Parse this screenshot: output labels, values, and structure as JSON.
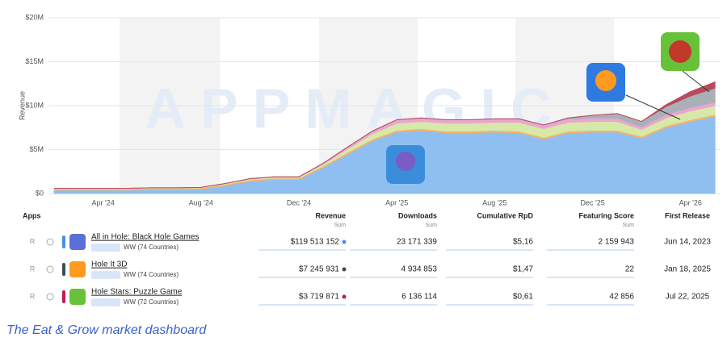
{
  "chart_data": {
    "type": "stacked-area",
    "y_label": "Revenue",
    "watermark": "APPMAGIC",
    "categories": [
      null,
      null,
      "Apr '24",
      null,
      null,
      null,
      "Aug '24",
      null,
      null,
      null,
      "Dec '24",
      null,
      null,
      null,
      "Apr '25",
      null,
      null,
      null,
      "Aug '25",
      null,
      null,
      null,
      "Dec '25",
      null,
      null,
      null,
      "Apr '26",
      null
    ],
    "series": [
      {
        "color": "#8fbff0",
        "values": [
          400000,
          400000,
          400000,
          400000,
          450000,
          450000,
          500000,
          900000,
          1400000,
          1600000,
          1600000,
          3000000,
          4500000,
          6000000,
          7000000,
          7200000,
          6900000,
          6900000,
          7000000,
          6900000,
          6200000,
          6900000,
          7000000,
          7000000,
          6300000,
          7500000,
          8200000,
          8800000
        ]
      },
      {
        "color": "#f6b26b",
        "values": [
          150000,
          150000,
          150000,
          150000,
          150000,
          150000,
          150000,
          150000,
          150000,
          150000,
          150000,
          150000,
          200000,
          200000,
          200000,
          200000,
          200000,
          200000,
          200000,
          200000,
          200000,
          200000,
          200000,
          200000,
          200000,
          200000,
          200000,
          200000
        ]
      },
      {
        "color": "#d6e9a8",
        "values": [
          50000,
          50000,
          50000,
          50000,
          50000,
          50000,
          50000,
          100000,
          100000,
          100000,
          100000,
          200000,
          400000,
          600000,
          800000,
          800000,
          900000,
          900000,
          900000,
          1000000,
          1000000,
          1000000,
          1000000,
          1000000,
          800000,
          900000,
          1000000,
          1000000
        ]
      },
      {
        "color": "#e9a6cf",
        "values": [
          0,
          0,
          0,
          0,
          0,
          0,
          0,
          0,
          50000,
          50000,
          50000,
          100000,
          200000,
          300000,
          400000,
          400000,
          400000,
          400000,
          400000,
          400000,
          400000,
          400000,
          400000,
          400000,
          300000,
          400000,
          400000,
          400000
        ]
      },
      {
        "color": "#a9b0b8",
        "values": [
          0,
          0,
          0,
          0,
          0,
          0,
          0,
          0,
          0,
          0,
          0,
          0,
          0,
          0,
          0,
          0,
          0,
          0,
          0,
          0,
          0,
          100000,
          300000,
          500000,
          600000,
          900000,
          1300000,
          1600000
        ]
      },
      {
        "color": "#b94a5e",
        "values": [
          0,
          0,
          0,
          0,
          0,
          0,
          0,
          0,
          0,
          0,
          0,
          0,
          0,
          0,
          0,
          0,
          0,
          0,
          0,
          0,
          0,
          0,
          0,
          0,
          0,
          200000,
          500000,
          700000
        ]
      }
    ],
    "ylim": [
      0,
      20000000
    ],
    "yticks": [
      {
        "value": 0,
        "label": "$0"
      },
      {
        "value": 5000000,
        "label": "$5M"
      },
      {
        "value": 10000000,
        "label": "$10M"
      },
      {
        "value": 15000000,
        "label": "$15M"
      },
      {
        "value": 20000000,
        "label": "$20M"
      }
    ],
    "grid": true
  },
  "table": {
    "headers": [
      {
        "label": "Apps"
      },
      {
        "label": "Revenue",
        "sub": "Sum"
      },
      {
        "label": "Downloads",
        "sub": "Sum"
      },
      {
        "label": "Cumulative RpD"
      },
      {
        "label": "Featuring Score",
        "sub": "Sum"
      },
      {
        "label": "First Release"
      }
    ],
    "rows": [
      {
        "marker": "R",
        "name": "All in Hole: Black Hole Games",
        "region": "WW (74 Countries)",
        "dot": "#4a90e2",
        "cells": [
          "$119 513 152",
          "23 171 339",
          "$5,16",
          "2 159 943",
          "Jun 14, 2023"
        ]
      },
      {
        "marker": "R",
        "name": "Hole It 3D",
        "region": "WW (74 Countries)",
        "dot": "#3d4a5c",
        "cells": [
          "$7 245 931",
          "4 934 853",
          "$1,47",
          "22",
          "Jan 18, 2025"
        ]
      },
      {
        "marker": "R",
        "name": "Hole Stars: Puzzle Game",
        "region": "WW (72 Countries)",
        "dot": "#c2185b",
        "cells": [
          "$3 719 871",
          "6 136 114",
          "$0,61",
          "42 856",
          "Jul 22, 2025"
        ]
      }
    ]
  },
  "caption": "The Eat & Grow market dashboard"
}
